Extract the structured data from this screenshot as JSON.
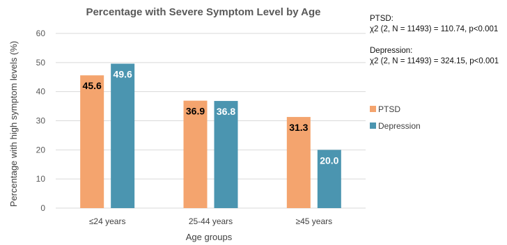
{
  "chart_data": {
    "type": "bar",
    "title": "Percentage with Severe Symptom Level by Age",
    "xlabel": "Age groups",
    "ylabel": "Percentage with high symptom levels (%)",
    "categories": [
      "≤24 years",
      "25-44 years",
      "≥45 years"
    ],
    "ylim": [
      0,
      60
    ],
    "yticks": [
      0,
      10,
      20,
      30,
      40,
      50,
      60
    ],
    "grid": true,
    "legend_position": "right",
    "series": [
      {
        "name": "PTSD",
        "values": [
          45.6,
          36.9,
          31.3
        ],
        "labels": [
          "45.6",
          "36.9",
          "31.3"
        ],
        "color": "#f4a46e",
        "label_color": "#000000"
      },
      {
        "name": "Depression",
        "values": [
          49.6,
          36.8,
          20.0
        ],
        "labels": [
          "49.6",
          "36.8",
          "20.0"
        ],
        "color": "#4b95b0",
        "label_color": "#ffffff"
      }
    ]
  },
  "annotations": {
    "ptsd_heading": "PTSD:",
    "ptsd_stat": "χ2 (2, N = 11493) = 110.74, p<0.001",
    "depression_heading": "Depression:",
    "depression_stat": "χ2 (2, N = 11493) = 324.15, p<0.001"
  }
}
